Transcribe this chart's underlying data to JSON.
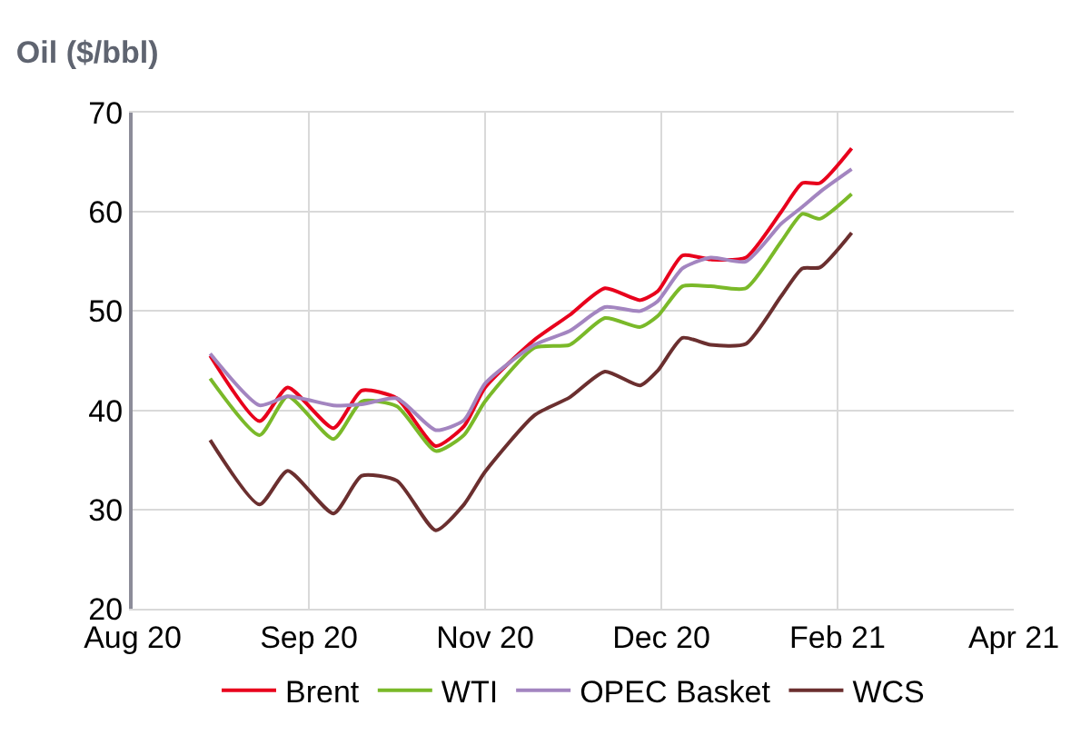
{
  "chart_data": {
    "type": "line",
    "title": "Oil ($/bbl)",
    "x": [
      "2020-08-23",
      "2020-09-06",
      "2020-09-14",
      "2020-09-27",
      "2020-10-05",
      "2020-10-15",
      "2020-10-26",
      "2020-11-03",
      "2020-11-09",
      "2020-11-23",
      "2020-12-03",
      "2020-12-13",
      "2020-12-23",
      "2020-12-28",
      "2021-01-04",
      "2021-01-12",
      "2021-01-22",
      "2021-02-01",
      "2021-02-07",
      "2021-02-12",
      "2021-02-21"
    ],
    "series": [
      {
        "name": "Brent",
        "color": "#e8001c",
        "values": [
          45.5,
          38.9,
          42.3,
          38.2,
          42.0,
          41.2,
          36.4,
          38.4,
          42.3,
          47.1,
          49.6,
          52.3,
          51.1,
          52.0,
          55.6,
          55.2,
          55.4,
          60.0,
          62.9,
          62.9,
          66.4
        ]
      },
      {
        "name": "WTI",
        "color": "#7ab929",
        "values": [
          43.2,
          37.5,
          41.4,
          37.1,
          40.9,
          40.4,
          35.9,
          37.5,
          40.9,
          46.3,
          46.6,
          49.3,
          48.4,
          49.5,
          52.5,
          52.5,
          52.3,
          57.0,
          59.8,
          59.3,
          61.8
        ]
      },
      {
        "name": "OPEC Basket",
        "color": "#a385c0",
        "values": [
          45.7,
          40.5,
          41.4,
          40.5,
          40.6,
          41.2,
          38.0,
          39.0,
          42.7,
          46.6,
          48.0,
          50.4,
          50.0,
          51.0,
          54.3,
          55.4,
          55.0,
          58.8,
          60.5,
          62.0,
          64.3
        ]
      },
      {
        "name": "WCS",
        "color": "#6b2f2f",
        "values": [
          37.0,
          30.5,
          33.9,
          29.6,
          33.4,
          32.9,
          27.9,
          30.5,
          33.8,
          39.5,
          41.3,
          43.9,
          42.5,
          44.0,
          47.3,
          46.6,
          46.7,
          51.5,
          54.3,
          54.4,
          57.9
        ]
      }
    ],
    "xlim": [
      "2020-08-01",
      "2021-04-08"
    ],
    "xticks": [
      {
        "value": "2020-08-01",
        "label": "Aug 20"
      },
      {
        "value": "2020-09-20",
        "label": "Sep 20"
      },
      {
        "value": "2020-11-09",
        "label": "Nov 20"
      },
      {
        "value": "2020-12-29",
        "label": "Dec 20"
      },
      {
        "value": "2021-02-17",
        "label": "Feb 21"
      },
      {
        "value": "2021-04-08",
        "label": "Apr 21"
      }
    ],
    "ylim": [
      20,
      70
    ],
    "yticks": [
      20,
      30,
      40,
      50,
      60,
      70
    ],
    "grid": true,
    "legend": "bottom",
    "marker": "none",
    "line_style": "solid"
  }
}
